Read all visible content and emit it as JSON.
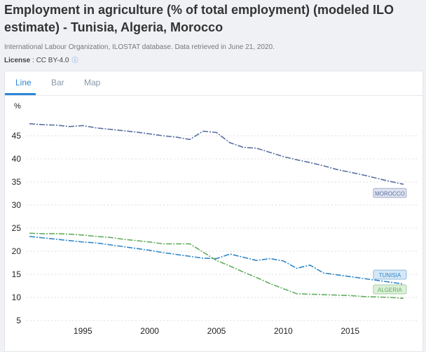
{
  "header": {
    "title": "Employment in agriculture (% of total employment) (modeled ILO estimate) - Tunisia, Algeria, Morocco",
    "source": "International Labour Organization, ILOSTAT database. Data retrieved in June 21, 2020.",
    "license_label": "License",
    "license_value": ": CC BY-4.0",
    "info_icon": "info-circle-icon"
  },
  "tabs": [
    {
      "label": "Line",
      "active": true
    },
    {
      "label": "Bar"
    },
    {
      "label": "Map"
    }
  ],
  "chart_data": {
    "type": "line",
    "ylabel": "%",
    "ylim": [
      5,
      48
    ],
    "yticks": [
      5,
      10,
      15,
      20,
      25,
      30,
      35,
      40,
      45
    ],
    "xticks": [
      1995,
      2000,
      2005,
      2010,
      2015
    ],
    "grid": true,
    "legend": "inline-right",
    "x": [
      1991,
      1992,
      1993,
      1994,
      1995,
      1996,
      1997,
      1998,
      1999,
      2000,
      2001,
      2002,
      2003,
      2004,
      2005,
      2006,
      2007,
      2008,
      2009,
      2010,
      2011,
      2012,
      2013,
      2014,
      2015,
      2016,
      2017,
      2018,
      2019
    ],
    "series": [
      {
        "name": "MOROCCO",
        "color": "#5a6fa0",
        "labelBg": "#dfe3f0",
        "values": [
          47.6,
          47.4,
          47.3,
          47.0,
          47.2,
          46.7,
          46.4,
          46.1,
          45.8,
          45.4,
          45.0,
          44.7,
          44.2,
          46.0,
          45.7,
          43.5,
          42.5,
          42.3,
          41.4,
          40.5,
          39.8,
          39.2,
          38.5,
          37.7,
          37.1,
          36.5,
          35.8,
          35.1,
          34.5
        ]
      },
      {
        "name": "TUNISIA",
        "color": "#2f86c9",
        "labelBg": "#d6e7f5",
        "values": [
          23.2,
          22.9,
          22.6,
          22.3,
          22.0,
          21.8,
          21.4,
          21.0,
          20.6,
          20.2,
          19.7,
          19.3,
          18.9,
          18.5,
          18.4,
          19.4,
          18.7,
          18.0,
          18.4,
          17.9,
          16.3,
          17.0,
          15.3,
          14.9,
          14.5,
          14.1,
          13.7,
          13.3,
          12.9
        ]
      },
      {
        "name": "ALGERIA",
        "color": "#62ad5e",
        "labelBg": "#dcefd9",
        "values": [
          23.9,
          23.8,
          23.8,
          23.7,
          23.5,
          23.2,
          23.0,
          22.6,
          22.3,
          22.0,
          21.6,
          21.6,
          21.6,
          19.8,
          18.0,
          16.8,
          15.5,
          14.3,
          13.0,
          11.9,
          10.8,
          10.7,
          10.6,
          10.5,
          10.4,
          10.2,
          10.1,
          10.0,
          9.8
        ]
      }
    ]
  }
}
